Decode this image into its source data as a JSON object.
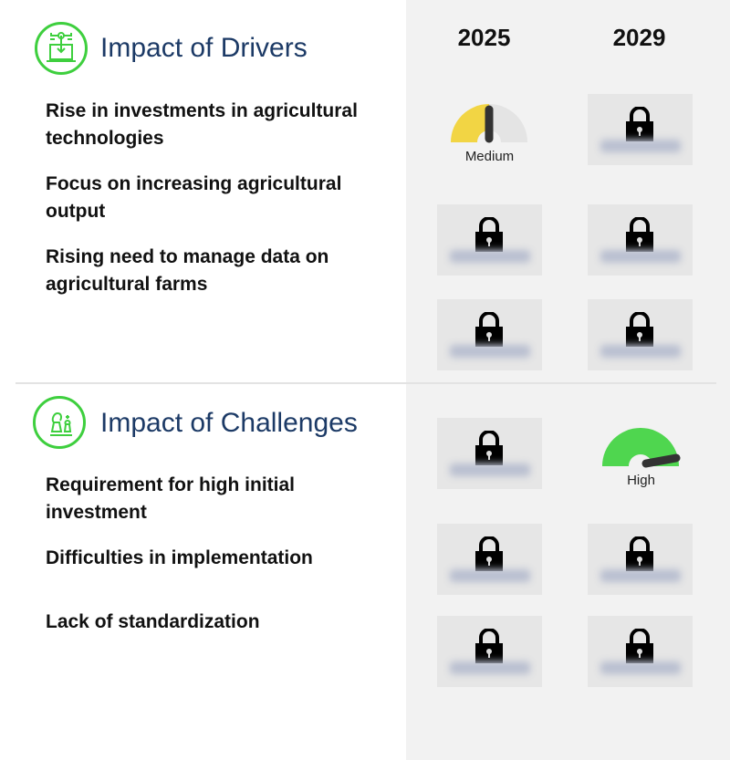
{
  "years": [
    "2025",
    "2029"
  ],
  "drivers": {
    "title": "Impact of Drivers",
    "icon": "technology-laptop-icon",
    "items": [
      {
        "label": "Rise in investments in agricultural technologies",
        "2025": {
          "level": "Medium",
          "locked": false
        },
        "2029": {
          "locked": true
        }
      },
      {
        "label": "Focus on increasing agricultural output",
        "2025": {
          "locked": true
        },
        "2029": {
          "locked": true
        }
      },
      {
        "label": "Rising need to manage data on agricultural farms",
        "2025": {
          "locked": true
        },
        "2029": {
          "locked": true
        }
      }
    ]
  },
  "challenges": {
    "title": "Impact of Challenges",
    "icon": "chess-pieces-icon",
    "items": [
      {
        "label": "Requirement for high initial investment",
        "2025": {
          "locked": true
        },
        "2029": {
          "level": "High",
          "locked": false
        }
      },
      {
        "label": "Difficulties in implementation",
        "2025": {
          "locked": true
        },
        "2029": {
          "locked": true
        }
      },
      {
        "label": "Lack of standardization",
        "2025": {
          "locked": true
        },
        "2029": {
          "locked": true
        }
      }
    ]
  },
  "colors": {
    "accent": "#3ecf3e",
    "title": "#1c3a66",
    "medium": "#f2d544",
    "high": "#4fd64f",
    "panel": "#f2f2f2"
  }
}
